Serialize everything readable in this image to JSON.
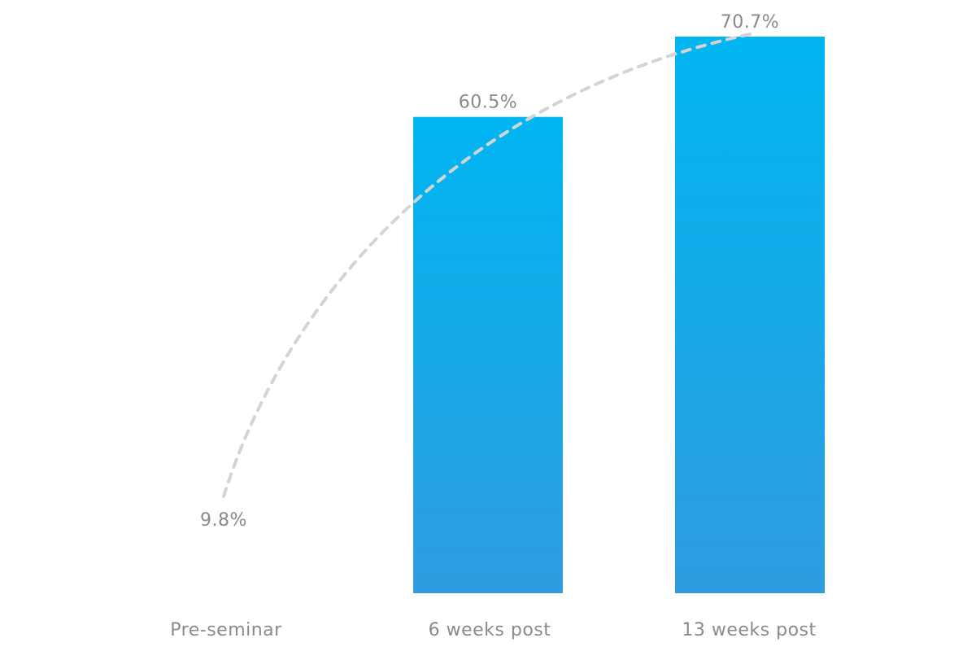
{
  "chart_data": {
    "type": "bar",
    "categories": [
      "Pre-seminar",
      "6 weeks post",
      "13 weeks post"
    ],
    "values": [
      9.8,
      60.5,
      70.7
    ],
    "value_labels": [
      "9.8%",
      "60.5%",
      "70.7%"
    ],
    "unit": "%",
    "ylim": [
      0,
      70.7
    ],
    "grid": false,
    "legend": "none",
    "trend_line": "dashed",
    "colors": {
      "bar_top": "#00B6F1",
      "bar_bottom": "#2F9CE0",
      "trend": "#D4D4D4",
      "text": "#8A8A8A"
    }
  }
}
